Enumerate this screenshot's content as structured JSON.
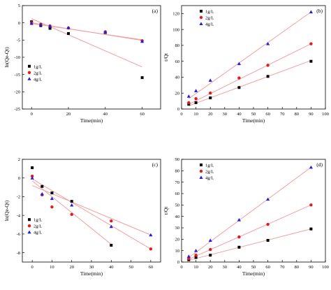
{
  "chart_data": [
    {
      "type": "scatter",
      "panel_label": "(a)",
      "xlabel": "Time(min)",
      "ylabel": "ln(Qe-Qt)",
      "xlim": [
        -5,
        70
      ],
      "ylim": [
        -25,
        5
      ],
      "xticks": [
        0,
        20,
        40,
        60
      ],
      "yticks": [
        -25,
        -20,
        -15,
        -10,
        -5,
        0,
        5
      ],
      "legend_position": "left-bottom",
      "series": [
        {
          "name": "1g/L",
          "marker": "square",
          "color": "#000000",
          "x": [
            0,
            5,
            10,
            20,
            40,
            60
          ],
          "y": [
            0.3,
            -0.8,
            -1.6,
            -3.1,
            -2.8,
            -15.9
          ],
          "fit": {
            "x": [
              0,
              60
            ],
            "y": [
              1.2,
              -12.8
            ]
          }
        },
        {
          "name": "2g/L",
          "marker": "circle",
          "color": "#e8191c",
          "x": [
            0,
            5,
            10,
            20,
            40,
            60
          ],
          "y": [
            0,
            -0.4,
            -0.9,
            -1.5,
            -2.6,
            -5.2
          ],
          "fit": {
            "x": [
              0,
              60
            ],
            "y": [
              -0.2,
              -4.9
            ]
          }
        },
        {
          "name": "4g/L",
          "marker": "triangle",
          "color": "#1f1fdc",
          "x": [
            0,
            5,
            10,
            20,
            40,
            60
          ],
          "y": [
            -0.2,
            -0.5,
            -1.0,
            -1.4,
            -2.7,
            -5.4
          ],
          "fit": {
            "x": [
              0,
              60
            ],
            "y": [
              0,
              -5.1
            ]
          }
        }
      ]
    },
    {
      "type": "scatter",
      "panel_label": "(b)",
      "xlabel": "Time(min)",
      "ylabel": "t/Qt",
      "xlim": [
        0,
        100
      ],
      "ylim": [
        0,
        130
      ],
      "xticks": [
        0,
        10,
        20,
        30,
        40,
        50,
        60,
        70,
        80,
        90,
        100
      ],
      "yticks": [
        0,
        20,
        40,
        60,
        80,
        100,
        120
      ],
      "legend_position": "top-left",
      "series": [
        {
          "name": "1g/L",
          "marker": "square",
          "color": "#000000",
          "x": [
            5,
            10,
            20,
            40,
            60,
            90
          ],
          "y": [
            6,
            8,
            14,
            27,
            41,
            60
          ],
          "fit": {
            "x": [
              5,
              90
            ],
            "y": [
              4,
              61
            ]
          }
        },
        {
          "name": "2g/L",
          "marker": "circle",
          "color": "#e8191c",
          "x": [
            5,
            10,
            20,
            40,
            60,
            90
          ],
          "y": [
            8,
            13,
            20,
            39,
            55,
            82
          ],
          "fit": {
            "x": [
              5,
              90
            ],
            "y": [
              6,
              82
            ]
          }
        },
        {
          "name": "4g/L",
          "marker": "triangle",
          "color": "#1f1fdc",
          "x": [
            5,
            10,
            20,
            40,
            60,
            90
          ],
          "y": [
            16,
            23,
            36,
            57,
            82,
            122
          ],
          "fit": {
            "x": [
              5,
              90
            ],
            "y": [
              13,
              122
            ]
          }
        }
      ]
    },
    {
      "type": "scatter",
      "panel_label": "(c)",
      "xlabel": "Time(min)",
      "ylabel": "ln(Qe-Qt)",
      "xlim": [
        -5,
        65
      ],
      "ylim": [
        -9,
        2
      ],
      "xticks": [
        0,
        10,
        20,
        30,
        40,
        50,
        60
      ],
      "yticks": [
        -8,
        -6,
        -4,
        -2,
        0,
        2
      ],
      "legend_position": "left-bottom",
      "series": [
        {
          "name": "1g/L",
          "marker": "square",
          "color": "#000000",
          "x": [
            0,
            5,
            10,
            20,
            40
          ],
          "y": [
            1.1,
            -0.9,
            -1.6,
            -2.5,
            -7.2
          ],
          "fit": {
            "x": [
              0,
              40
            ],
            "y": [
              -0.3,
              -7.1
            ]
          }
        },
        {
          "name": "2g/L",
          "marker": "circle",
          "color": "#e8191c",
          "x": [
            0,
            5,
            10,
            20,
            40,
            60
          ],
          "y": [
            0.2,
            -1.8,
            -3.1,
            -3.9,
            -4.6,
            -7.6
          ],
          "fit": {
            "x": [
              0,
              60
            ],
            "y": [
              -0.1,
              -7.6
            ]
          }
        },
        {
          "name": "4g/L",
          "marker": "triangle",
          "color": "#1f1fdc",
          "x": [
            0,
            5,
            10,
            20,
            40,
            60
          ],
          "y": [
            0,
            -1.7,
            -2.2,
            -2.9,
            -5.2,
            -6.1
          ],
          "fit": {
            "x": [
              0,
              60
            ],
            "y": [
              -0.8,
              -6.1
            ]
          }
        }
      ]
    },
    {
      "type": "scatter",
      "panel_label": "(d)",
      "xlabel": "Time(min)",
      "ylabel": "t/Qt",
      "xlim": [
        0,
        100
      ],
      "ylim": [
        0,
        90
      ],
      "xticks": [
        0,
        10,
        20,
        30,
        40,
        50,
        60,
        70,
        80,
        90,
        100
      ],
      "yticks": [
        0,
        10,
        20,
        30,
        40,
        50,
        60,
        70,
        80,
        90
      ],
      "legend_position": "top-left",
      "series": [
        {
          "name": "1g/L",
          "marker": "square",
          "color": "#000000",
          "x": [
            5,
            10,
            20,
            40,
            60,
            90
          ],
          "y": [
            2,
            4,
            6,
            13,
            19,
            29
          ],
          "fit": {
            "x": [
              5,
              90
            ],
            "y": [
              1.5,
              29
            ]
          }
        },
        {
          "name": "2g/L",
          "marker": "circle",
          "color": "#e8191c",
          "x": [
            5,
            10,
            20,
            40,
            60,
            90
          ],
          "y": [
            3,
            6,
            11,
            22,
            33,
            50
          ],
          "fit": {
            "x": [
              5,
              90
            ],
            "y": [
              2.5,
              50
            ]
          }
        },
        {
          "name": "4g/L",
          "marker": "triangle",
          "color": "#1f1fdc",
          "x": [
            5,
            10,
            20,
            40,
            60,
            90
          ],
          "y": [
            5,
            10,
            19,
            37,
            55,
            83
          ],
          "fit": {
            "x": [
              5,
              90
            ],
            "y": [
              4,
              83
            ]
          }
        }
      ]
    }
  ]
}
